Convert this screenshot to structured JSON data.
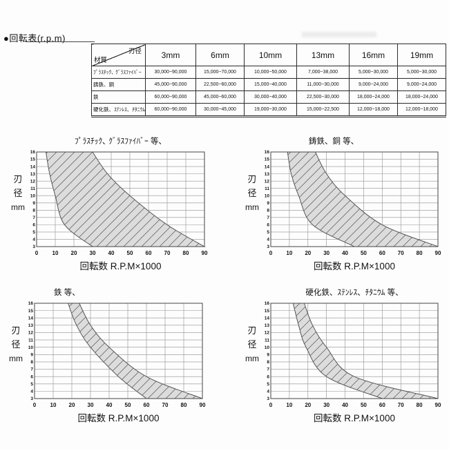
{
  "page": {
    "title": "●回転表(r.p.m)"
  },
  "table": {
    "corner": {
      "top_right": "刃径",
      "bottom_left": "材質"
    },
    "columns": [
      "3mm",
      "6mm",
      "10mm",
      "13mm",
      "16mm",
      "19mm"
    ],
    "rows": [
      {
        "material": "ﾌﾟﾗｽﾁｯｸ､ ｸﾞﾗｽﾌｧｲﾊﾞｰ",
        "values": [
          "30,000~90,000",
          "15,000~70,000",
          "10,000~50,000",
          "7,000~38,000",
          "5,000~30,000",
          "5,000~30,000"
        ]
      },
      {
        "material": "鋳鉄、銅",
        "values": [
          "45,000~90,000",
          "22,500~60,000",
          "15,000~40,000",
          "11,000~30,000",
          "9,000~24,000",
          "9,000~24,000"
        ]
      },
      {
        "material": "鉄",
        "values": [
          "60,000~90,000",
          "45,000~60,000",
          "30,000~40,000",
          "22,500~30,000",
          "18,000~24,000",
          "18,000~24,000"
        ]
      },
      {
        "material": "硬化鉄、ｽﾃﾝﾚｽ、ﾁﾀﾆｳﾑ",
        "values": [
          "60,000~90,000",
          "30,000~45,000",
          "19,000~30,000",
          "15,000~22,500",
          "12,000~18,000",
          "12,000~18,000"
        ]
      }
    ]
  },
  "chart_data": [
    {
      "type": "area",
      "title": "ﾌﾟﾗｽﾁｯｸ､ ｸﾞﾗｽﾌｧｲﾊﾞｰ 等、",
      "xlabel": "回転数 R.P.M×1000",
      "ylabel": "刃径mm",
      "ylabel_lines": [
        "刃",
        "径",
        "mm"
      ],
      "xlim": [
        0,
        90
      ],
      "ylim": [
        3,
        16
      ],
      "grid": true,
      "x_ticks": [
        0,
        10,
        20,
        30,
        40,
        50,
        60,
        70,
        80,
        90
      ],
      "y_ticks": [
        3,
        4,
        5,
        6,
        7,
        8,
        9,
        10,
        11,
        12,
        13,
        14,
        15,
        16
      ],
      "band_fill": "#dcdcdc",
      "band_stroke": "#555555",
      "hatch": "diagonal",
      "band": {
        "diameter_mm": [
          3,
          6,
          10,
          13,
          16
        ],
        "rpm_min_x1000": [
          30,
          15,
          10,
          7,
          5
        ],
        "rpm_max_x1000": [
          90,
          70,
          50,
          38,
          30
        ]
      }
    },
    {
      "type": "area",
      "title": "鋳鉄、銅 等、",
      "xlabel": "回転数 R.P.M×1000",
      "ylabel": "刃径mm",
      "ylabel_lines": [
        "刃",
        "径",
        "mm"
      ],
      "xlim": [
        0,
        90
      ],
      "ylim": [
        3,
        16
      ],
      "grid": true,
      "x_ticks": [
        0,
        10,
        20,
        30,
        40,
        50,
        60,
        70,
        80,
        90
      ],
      "y_ticks": [
        3,
        4,
        5,
        6,
        7,
        8,
        9,
        10,
        11,
        12,
        13,
        14,
        15,
        16
      ],
      "band_fill": "#dcdcdc",
      "band_stroke": "#555555",
      "hatch": "diagonal",
      "band": {
        "diameter_mm": [
          3,
          6,
          10,
          13,
          16
        ],
        "rpm_min_x1000": [
          45,
          22.5,
          15,
          11,
          9
        ],
        "rpm_max_x1000": [
          90,
          60,
          40,
          30,
          24
        ]
      }
    },
    {
      "type": "area",
      "title": "鉄 等、",
      "xlabel": "回転数 R.P.M×1000",
      "ylabel": "刃径mm",
      "ylabel_lines": [
        "刃",
        "径",
        "mm"
      ],
      "xlim": [
        0,
        90
      ],
      "ylim": [
        3,
        16
      ],
      "grid": true,
      "x_ticks": [
        0,
        10,
        20,
        30,
        40,
        50,
        60,
        70,
        80,
        90
      ],
      "y_ticks": [
        3,
        4,
        5,
        6,
        7,
        8,
        9,
        10,
        11,
        12,
        13,
        14,
        15,
        16
      ],
      "band_fill": "#dcdcdc",
      "band_stroke": "#555555",
      "hatch": "diagonal",
      "band": {
        "diameter_mm": [
          3,
          6,
          10,
          13,
          16
        ],
        "rpm_min_x1000": [
          60,
          45,
          30,
          22.5,
          18
        ],
        "rpm_max_x1000": [
          90,
          60,
          40,
          30,
          24
        ]
      }
    },
    {
      "type": "area",
      "title": "硬化鉄、ｽﾃﾝﾚｽ、ﾁﾀﾆｳﾑ 等、",
      "xlabel": "回転数 R.P.M×1000",
      "ylabel": "刃径mm",
      "ylabel_lines": [
        "刃",
        "径",
        "mm"
      ],
      "xlim": [
        0,
        90
      ],
      "ylim": [
        3,
        16
      ],
      "grid": true,
      "x_ticks": [
        0,
        10,
        20,
        30,
        40,
        50,
        60,
        70,
        80,
        90
      ],
      "y_ticks": [
        3,
        4,
        5,
        6,
        7,
        8,
        9,
        10,
        11,
        12,
        13,
        14,
        15,
        16
      ],
      "band_fill": "#dcdcdc",
      "band_stroke": "#555555",
      "hatch": "diagonal",
      "band": {
        "diameter_mm": [
          3,
          6,
          10,
          13,
          16
        ],
        "rpm_min_x1000": [
          60,
          30,
          19,
          15,
          12
        ],
        "rpm_max_x1000": [
          90,
          45,
          30,
          22.5,
          18
        ]
      }
    }
  ]
}
